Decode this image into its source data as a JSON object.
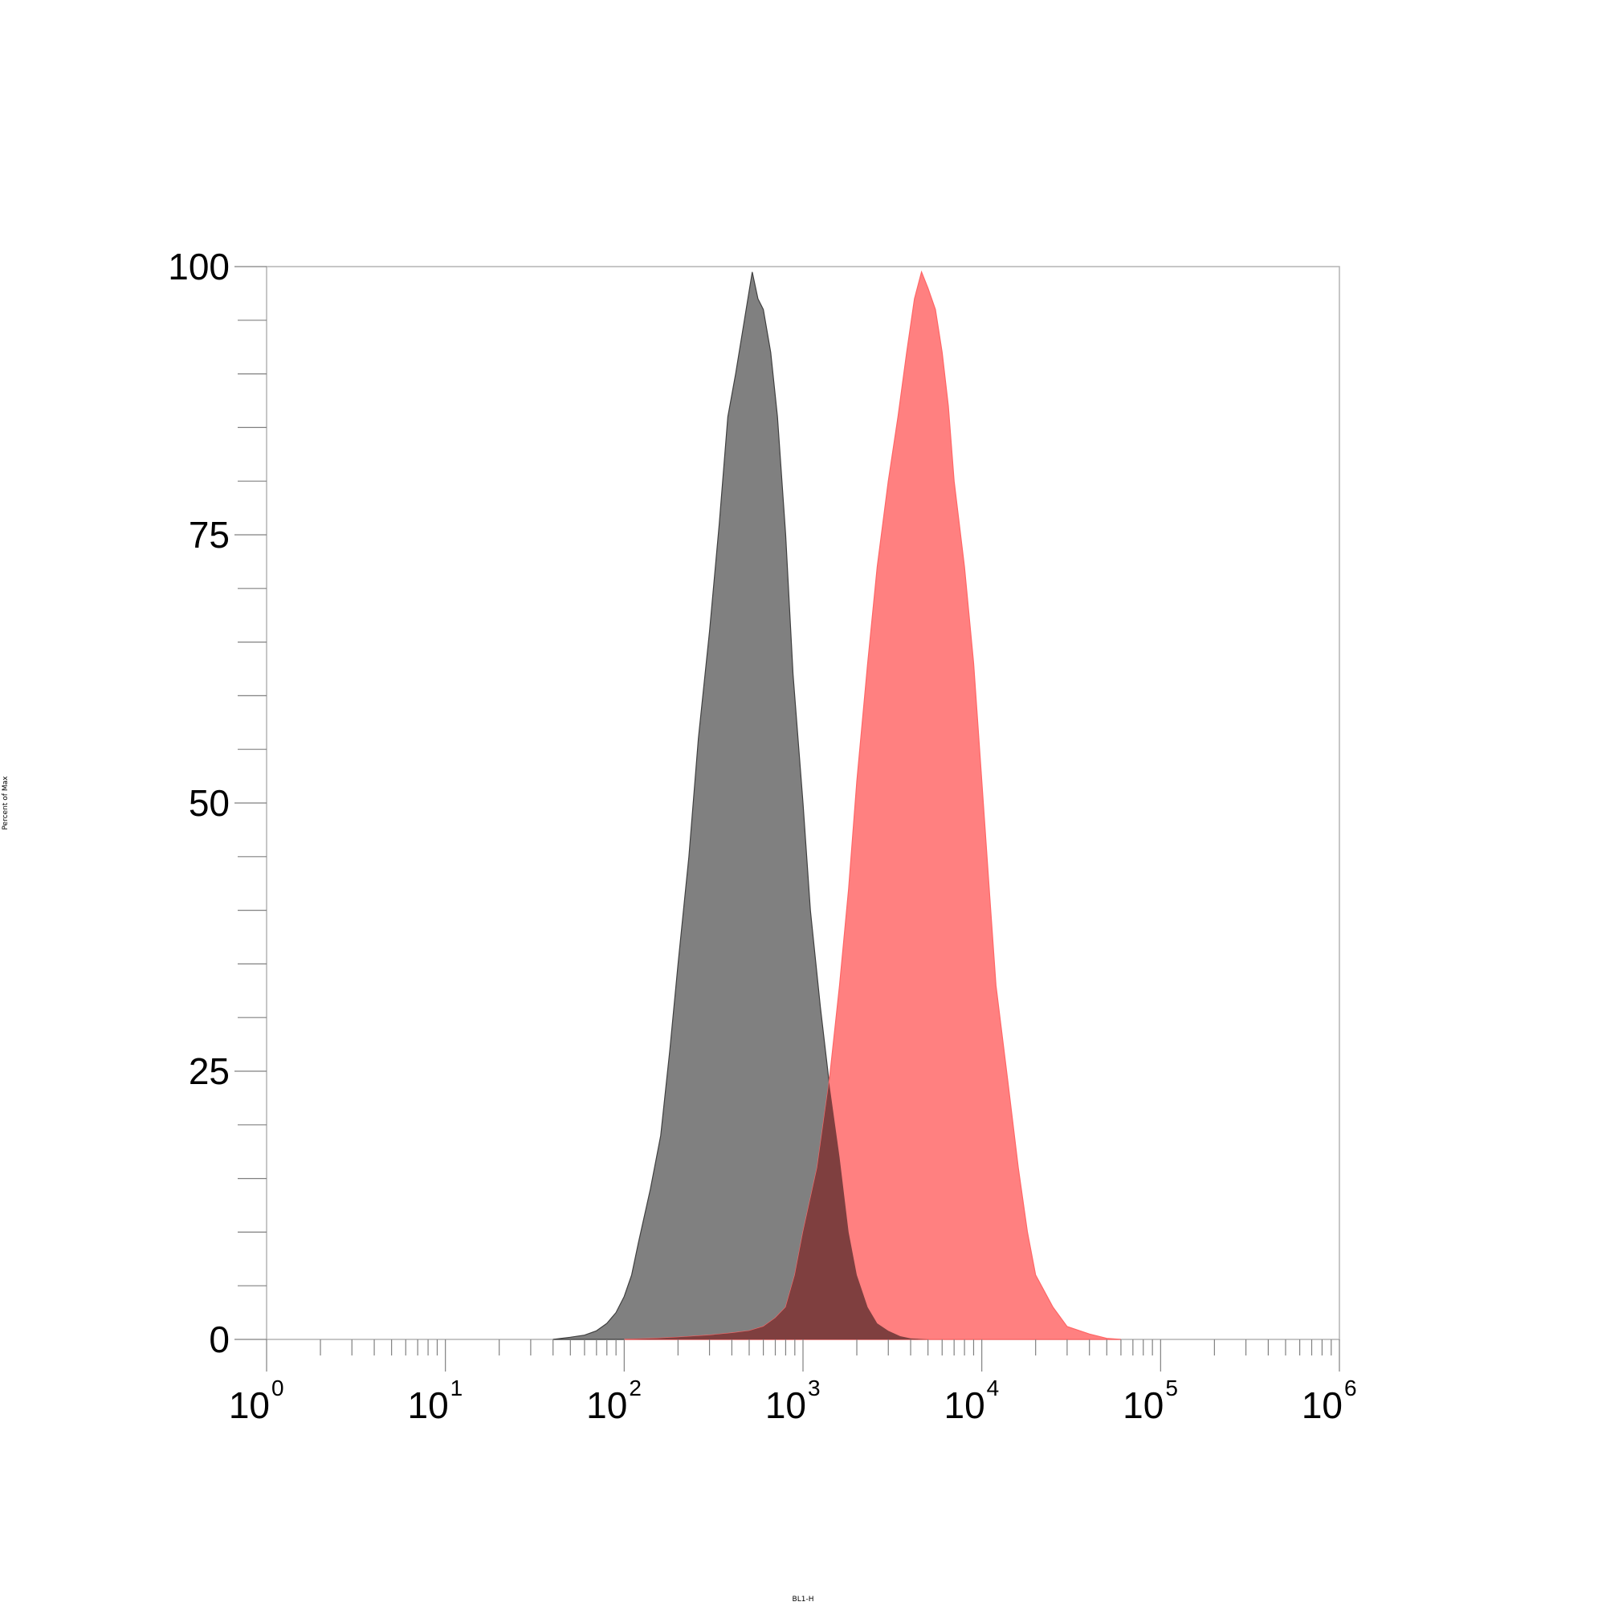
{
  "chart_data": {
    "type": "area",
    "xlabel": "BL1-H",
    "ylabel": "Percent of Max",
    "xscale": "log",
    "xlim": [
      1,
      1000000
    ],
    "ylim": [
      0,
      100
    ],
    "yticks": [
      0,
      25,
      50,
      75,
      100
    ],
    "yticks_minor_step": 5,
    "xticks": [
      {
        "base": "10",
        "exp": "0"
      },
      {
        "base": "10",
        "exp": "1"
      },
      {
        "base": "10",
        "exp": "2"
      },
      {
        "base": "10",
        "exp": "3"
      },
      {
        "base": "10",
        "exp": "4"
      },
      {
        "base": "10",
        "exp": "5"
      },
      {
        "base": "10",
        "exp": "6"
      }
    ],
    "grid": false,
    "legend": "none",
    "overlap_color": "#7f3f3f",
    "series": [
      {
        "color": "#808080",
        "stroke": "#404040",
        "x": [
          40,
          50,
          60,
          70,
          80,
          90,
          100,
          110,
          120,
          140,
          160,
          180,
          200,
          230,
          260,
          300,
          340,
          380,
          420,
          470,
          520,
          560,
          600,
          660,
          720,
          800,
          880,
          1000,
          1100,
          1250,
          1400,
          1600,
          1800,
          2000,
          2300,
          2600,
          3000,
          3500,
          4000,
          5000
        ],
        "y": [
          0,
          0.2,
          0.4,
          0.8,
          1.5,
          2.5,
          4,
          6,
          9,
          14,
          19,
          27,
          35,
          45,
          56,
          66,
          76,
          86,
          90,
          95,
          99.5,
          97,
          96,
          92,
          86,
          75,
          62,
          50,
          40,
          31,
          24,
          17,
          10,
          6,
          3,
          1.5,
          0.8,
          0.3,
          0.1,
          0
        ]
      },
      {
        "color": "#ff8080",
        "stroke": "#ff6666",
        "x": [
          100,
          150,
          200,
          300,
          400,
          500,
          600,
          700,
          800,
          900,
          1000,
          1200,
          1400,
          1600,
          1800,
          2000,
          2300,
          2600,
          3000,
          3400,
          3800,
          4200,
          4600,
          5000,
          5500,
          6000,
          6500,
          7000,
          8000,
          9000,
          10000,
          11000,
          12000,
          14000,
          16000,
          18000,
          20000,
          25000,
          30000,
          40000,
          50000,
          60000
        ],
        "y": [
          0,
          0.1,
          0.2,
          0.4,
          0.6,
          0.8,
          1.2,
          2,
          3,
          6,
          10,
          16,
          24,
          33,
          42,
          52,
          63,
          72,
          80,
          86,
          92,
          97,
          99.5,
          98,
          96,
          92,
          87,
          80,
          72,
          63,
          52,
          42,
          33,
          24,
          16,
          10,
          6,
          3,
          1.2,
          0.5,
          0.1,
          0
        ]
      }
    ]
  }
}
